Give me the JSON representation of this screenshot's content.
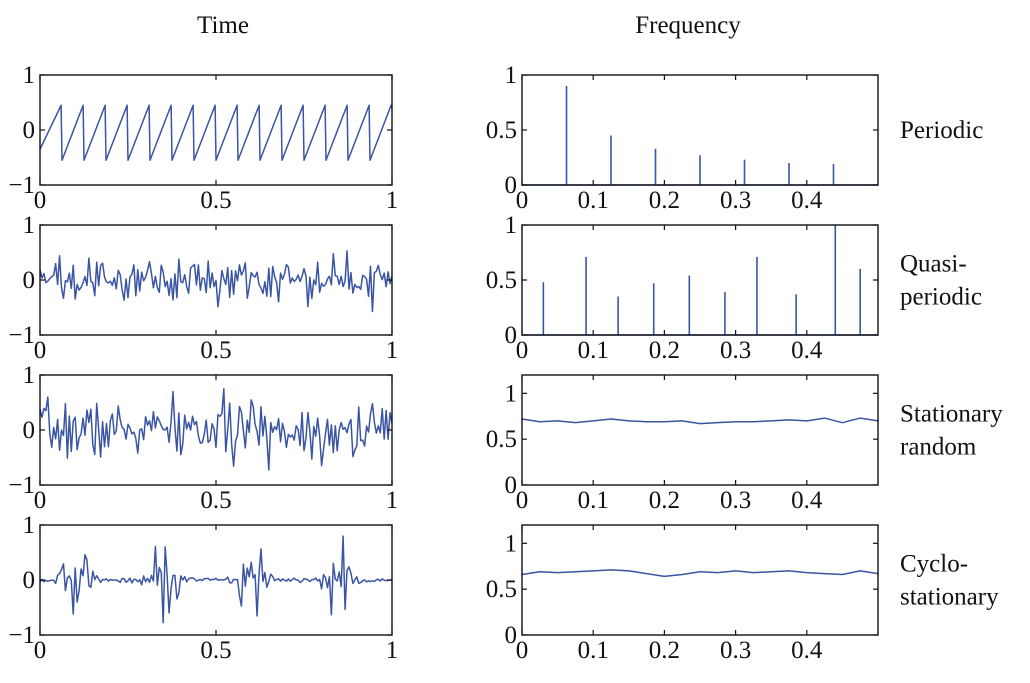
{
  "column_titles": {
    "time": "Time",
    "frequency": "Frequency"
  },
  "row_labels": [
    [
      "Periodic"
    ],
    [
      "Quasi-",
      "periodic"
    ],
    [
      "Stationary",
      "random"
    ],
    [
      "Cyclo-",
      "stationary"
    ]
  ],
  "colors": {
    "series": "#3a55a4",
    "axes": "#111111"
  },
  "chart_data": [
    {
      "type": "line",
      "panel": "time",
      "row": 0,
      "xlim": [
        0,
        1
      ],
      "ylim": [
        -1,
        1
      ],
      "xticks": [
        0,
        0.5,
        1
      ],
      "xtick_labels": [
        "0",
        "0.5",
        "1"
      ],
      "yticks": [
        -1,
        0,
        1
      ],
      "ytick_labels": [
        "−1",
        "0",
        "1"
      ],
      "signal": "sawtooth",
      "period": 0.0625,
      "amplitude_min": -0.55,
      "amplitude_max": 0.45,
      "x": [
        0,
        0.06,
        0.0625,
        0.1225,
        0.125,
        0.185,
        0.1875,
        0.2475,
        0.25,
        0.31,
        0.3125,
        0.3725,
        0.375,
        0.435,
        0.4375,
        0.4975,
        0.5,
        0.56,
        0.5625,
        0.6225,
        0.625,
        0.685,
        0.6875,
        0.7475,
        0.75,
        0.81,
        0.8125,
        0.8725,
        0.875,
        0.935,
        0.9375,
        0.9975,
        1
      ],
      "y": [
        -0.35,
        0.45,
        -0.55,
        0.45,
        -0.55,
        0.45,
        -0.55,
        0.45,
        -0.55,
        0.45,
        -0.55,
        0.45,
        -0.55,
        0.45,
        -0.55,
        0.45,
        -0.55,
        0.45,
        -0.55,
        0.45,
        -0.55,
        0.45,
        -0.55,
        0.45,
        -0.55,
        0.45,
        -0.55,
        0.45,
        -0.55,
        0.45,
        -0.55,
        0.45,
        0.4
      ]
    },
    {
      "type": "stem",
      "panel": "frequency",
      "row": 0,
      "xlim": [
        0,
        0.5
      ],
      "ylim": [
        0,
        1
      ],
      "xticks": [
        0,
        0.1,
        0.2,
        0.3,
        0.4
      ],
      "xtick_labels": [
        "0",
        "0.1",
        "0.2",
        "0.3",
        "0.4"
      ],
      "yticks": [
        0,
        0.5,
        1
      ],
      "ytick_labels": [
        "0",
        "0.5",
        "1"
      ],
      "x": [
        0.0625,
        0.125,
        0.1875,
        0.25,
        0.3125,
        0.375,
        0.4375
      ],
      "y": [
        0.9,
        0.45,
        0.33,
        0.27,
        0.23,
        0.2,
        0.19
      ]
    },
    {
      "type": "line",
      "panel": "time",
      "row": 1,
      "xlim": [
        0,
        1
      ],
      "ylim": [
        -1,
        1
      ],
      "xticks": [
        0,
        0.5,
        1
      ],
      "xtick_labels": [
        "0",
        "0.5",
        "1"
      ],
      "yticks": [
        -1,
        0,
        1
      ],
      "ytick_labels": [
        "−1",
        "0",
        "1"
      ],
      "signal": "sum_of_sines",
      "freqs": [
        7.4,
        22.9,
        34.3,
        47.6,
        59.1,
        73.8,
        86.2,
        104.1
      ],
      "amps": [
        0.09,
        0.13,
        0.06,
        0.08,
        0.11,
        0.06,
        0.14,
        0.1
      ],
      "n_points": 180
    },
    {
      "type": "stem",
      "panel": "frequency",
      "row": 1,
      "xlim": [
        0,
        0.5
      ],
      "ylim": [
        0,
        1
      ],
      "xticks": [
        0,
        0.1,
        0.2,
        0.3,
        0.4
      ],
      "xtick_labels": [
        "0",
        "0.1",
        "0.2",
        "0.3",
        "0.4"
      ],
      "yticks": [
        0,
        0.5,
        1
      ],
      "ytick_labels": [
        "0",
        "0.5",
        "1"
      ],
      "x": [
        0.03,
        0.09,
        0.135,
        0.185,
        0.235,
        0.285,
        0.33,
        0.385,
        0.44,
        0.475
      ],
      "y": [
        0.48,
        0.71,
        0.35,
        0.47,
        0.54,
        0.39,
        0.71,
        0.37,
        1.0,
        0.6
      ]
    },
    {
      "type": "line",
      "panel": "time",
      "row": 2,
      "xlim": [
        0,
        1
      ],
      "ylim": [
        -1,
        1
      ],
      "xticks": [
        0,
        0.5,
        1
      ],
      "xtick_labels": [
        "0",
        "0.5",
        "1"
      ],
      "yticks": [
        -1,
        0,
        1
      ],
      "ytick_labels": [
        "−1",
        "0",
        "1"
      ],
      "signal": "random",
      "seed": 7,
      "std": 0.26,
      "n_points": 180
    },
    {
      "type": "line",
      "panel": "frequency",
      "row": 2,
      "xlim": [
        0,
        0.5
      ],
      "ylim": [
        0,
        1.2
      ],
      "xticks": [
        0,
        0.1,
        0.2,
        0.3,
        0.4
      ],
      "xtick_labels": [
        "0",
        "0.1",
        "0.2",
        "0.3",
        "0.4"
      ],
      "yticks": [
        0,
        0.5,
        1
      ],
      "ytick_labels": [
        "0",
        "0.5",
        "1"
      ],
      "x": [
        0,
        0.025,
        0.05,
        0.075,
        0.1,
        0.125,
        0.15,
        0.175,
        0.2,
        0.225,
        0.25,
        0.275,
        0.3,
        0.325,
        0.35,
        0.375,
        0.4,
        0.425,
        0.45,
        0.475,
        0.5
      ],
      "y": [
        0.72,
        0.69,
        0.7,
        0.68,
        0.7,
        0.72,
        0.7,
        0.69,
        0.69,
        0.7,
        0.67,
        0.68,
        0.69,
        0.69,
        0.7,
        0.71,
        0.7,
        0.73,
        0.68,
        0.73,
        0.7
      ]
    },
    {
      "type": "line",
      "panel": "time",
      "row": 3,
      "xlim": [
        0,
        1
      ],
      "ylim": [
        -1,
        1
      ],
      "xticks": [
        0,
        0.5,
        1
      ],
      "xtick_labels": [
        "0",
        "0.5",
        "1"
      ],
      "yticks": [
        -1,
        0,
        1
      ],
      "ytick_labels": [
        "−1",
        "0",
        "1"
      ],
      "signal": "cyclostationary_bursts",
      "seed": 13,
      "std": 0.45,
      "n_points": 180,
      "burst_centers": [
        0.1,
        0.35,
        0.6,
        0.85
      ],
      "burst_halfwidth": 0.075,
      "floor": 0.05
    },
    {
      "type": "line",
      "panel": "frequency",
      "row": 3,
      "xlim": [
        0,
        0.5
      ],
      "ylim": [
        0,
        1.2
      ],
      "xticks": [
        0,
        0.1,
        0.2,
        0.3,
        0.4
      ],
      "xtick_labels": [
        "0",
        "0.1",
        "0.2",
        "0.3",
        "0.4"
      ],
      "yticks": [
        0,
        0.5,
        1
      ],
      "ytick_labels": [
        "0",
        "0.5",
        "1"
      ],
      "x": [
        0,
        0.025,
        0.05,
        0.075,
        0.1,
        0.125,
        0.15,
        0.175,
        0.2,
        0.225,
        0.25,
        0.275,
        0.3,
        0.325,
        0.35,
        0.375,
        0.4,
        0.425,
        0.45,
        0.475,
        0.5
      ],
      "y": [
        0.66,
        0.69,
        0.68,
        0.69,
        0.7,
        0.71,
        0.7,
        0.67,
        0.64,
        0.66,
        0.69,
        0.68,
        0.7,
        0.68,
        0.69,
        0.7,
        0.68,
        0.67,
        0.66,
        0.7,
        0.67
      ]
    }
  ]
}
